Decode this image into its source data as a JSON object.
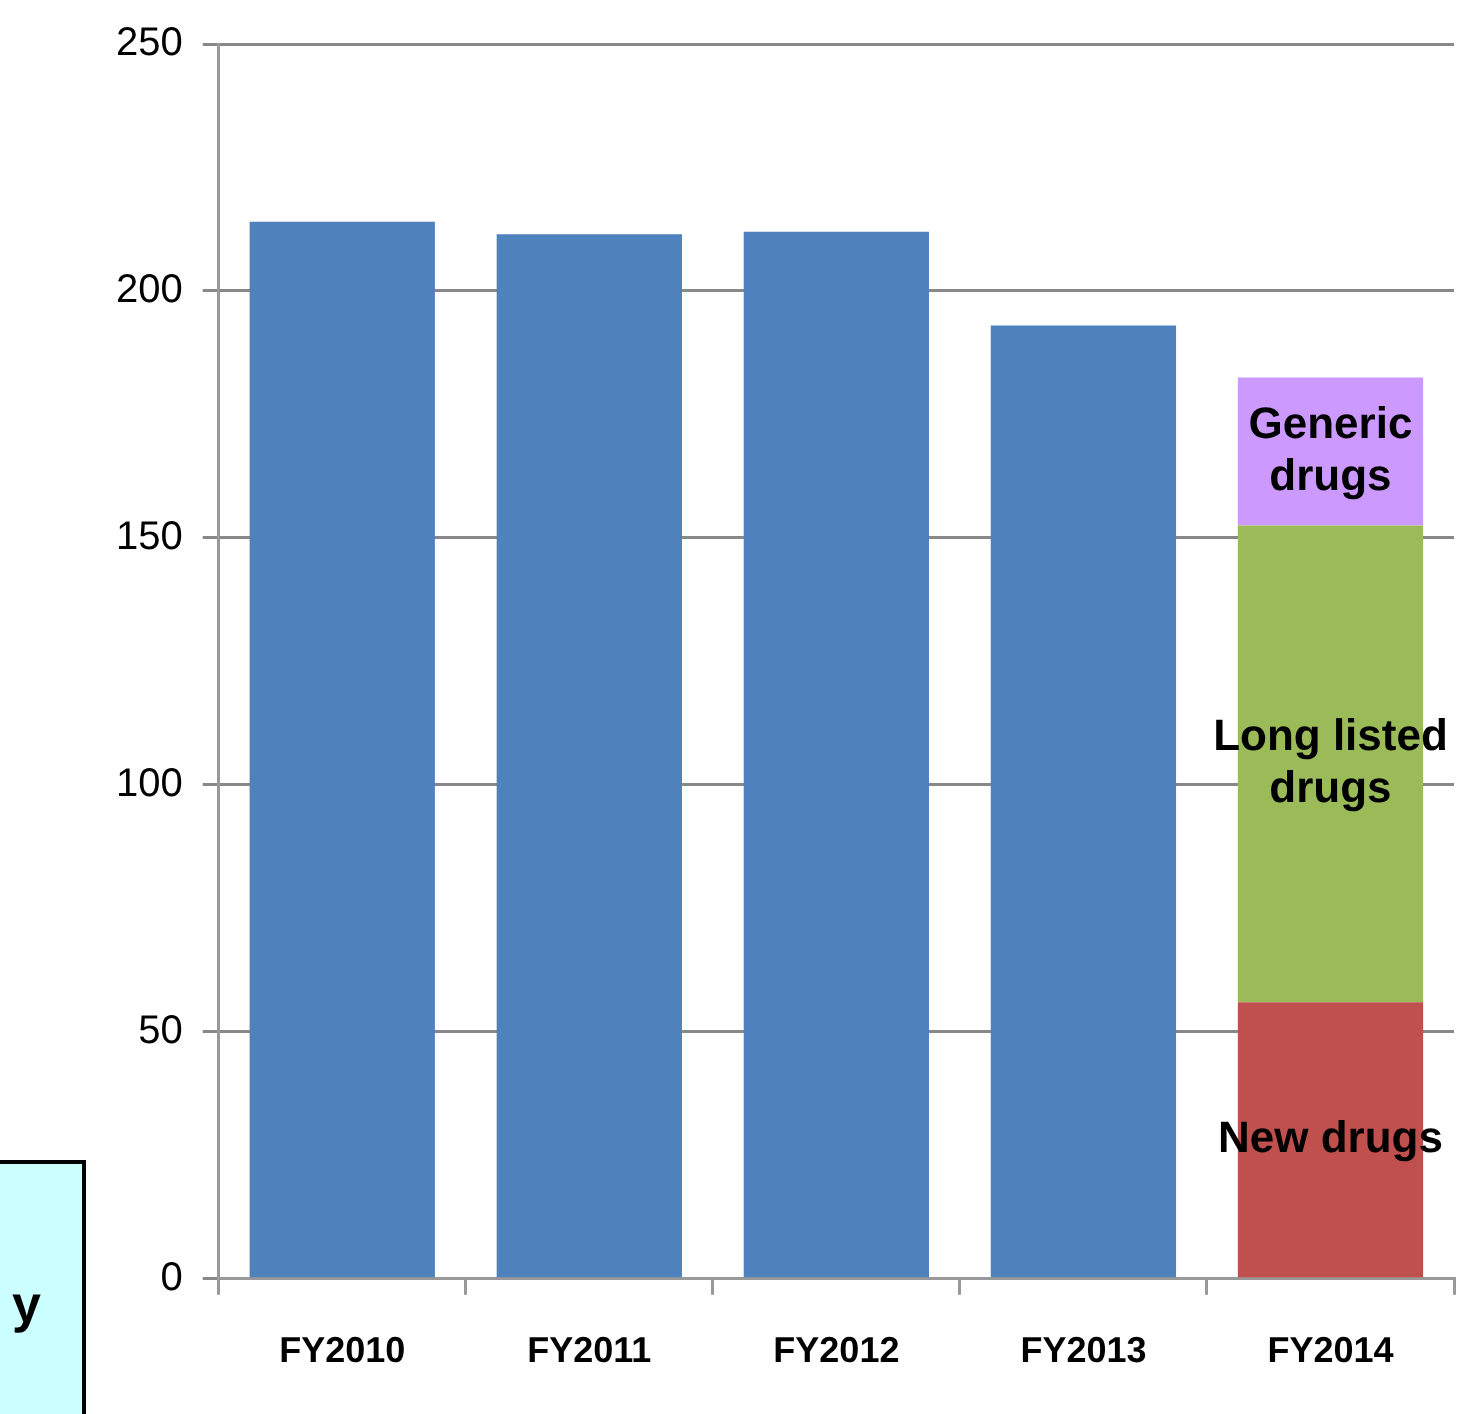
{
  "chart_data": {
    "type": "bar",
    "stacked": true,
    "categories": [
      "FY2010",
      "FY2011",
      "FY2012",
      "FY2013",
      "FY2014"
    ],
    "series": [
      {
        "color": "#4f81bd",
        "values": [
          214,
          211.5,
          212,
          193,
          null
        ]
      },
      {
        "name": "New drugs",
        "color": "#c0504d",
        "values": [
          null,
          null,
          null,
          null,
          56
        ]
      },
      {
        "name": "Long listed drugs",
        "color": "#9bbb59",
        "values": [
          null,
          null,
          null,
          null,
          96.5
        ]
      },
      {
        "name": "Generic drugs",
        "color": "#cc99ff",
        "values": [
          null,
          null,
          null,
          null,
          30
        ]
      }
    ],
    "ylim": [
      0,
      250
    ],
    "yticks": [
      0,
      50,
      100,
      150,
      200,
      250
    ],
    "grid": "y",
    "legend": false,
    "annotations": [
      "y"
    ]
  }
}
